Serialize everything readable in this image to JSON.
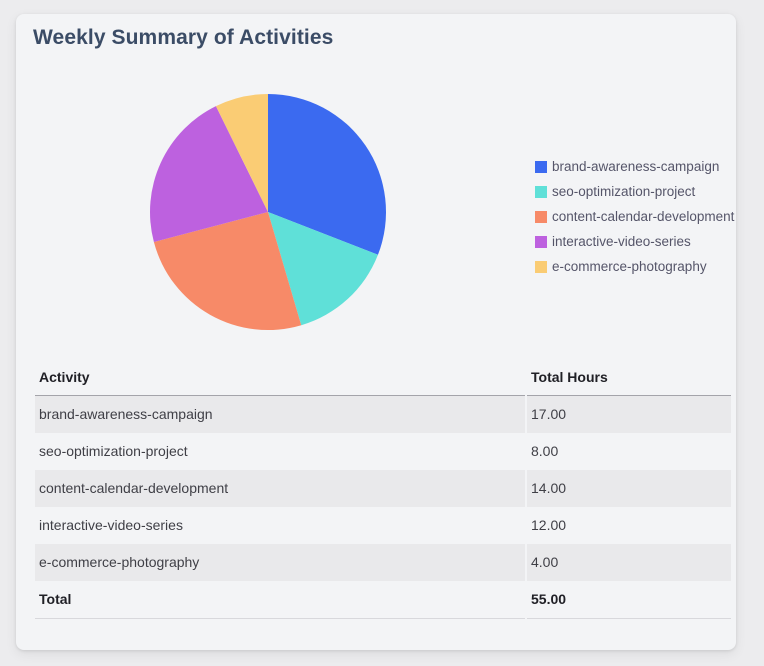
{
  "card": {
    "title": "Weekly Summary of Activities"
  },
  "chart_data": {
    "type": "pie",
    "title": "Weekly Summary of Activities",
    "labels": [
      "brand-awareness-campaign",
      "seo-optimization-project",
      "content-calendar-development",
      "interactive-video-series",
      "e-commerce-photography"
    ],
    "values": [
      17,
      8,
      14,
      12,
      4
    ],
    "colors": [
      "#3B6AF0",
      "#5FE0D8",
      "#F78A68",
      "#BD61DF",
      "#FACC74"
    ],
    "total": 55,
    "start_angle_deg": 0,
    "direction": "clockwise",
    "legend_position": "right"
  },
  "table": {
    "headers": [
      "Activity",
      "Total Hours"
    ],
    "rows": [
      {
        "activity": "brand-awareness-campaign",
        "hours": "17.00"
      },
      {
        "activity": "seo-optimization-project",
        "hours": "8.00"
      },
      {
        "activity": "content-calendar-development",
        "hours": "14.00"
      },
      {
        "activity": "interactive-video-series",
        "hours": "12.00"
      },
      {
        "activity": "e-commerce-photography",
        "hours": "4.00"
      }
    ],
    "total": {
      "label": "Total",
      "hours": "55.00"
    }
  },
  "colors": {
    "page_bg": "#ECECEE",
    "card_bg": "#F3F4F6",
    "title_text": "#3B4C66",
    "row_stripe": "#E9E9EB",
    "header_border": "#A4A4AA",
    "total_border": "#D8D8DC"
  }
}
